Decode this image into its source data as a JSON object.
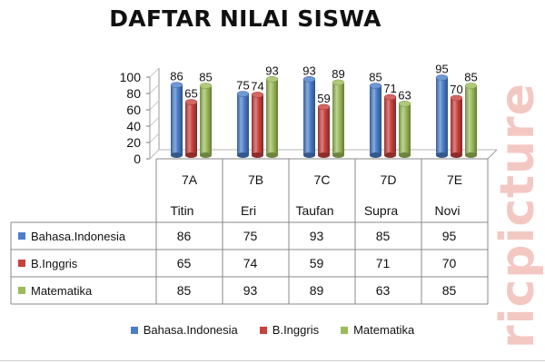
{
  "page": {
    "title": "DAFTAR NILAI SISWA",
    "watermark": "ricpicture"
  },
  "colors": {
    "series": [
      "#4a7ec9",
      "#c9403d",
      "#9bbb59"
    ],
    "background": "#ffffff",
    "grid": "#b8b8b8"
  },
  "chart_data": {
    "type": "bar",
    "title": "DAFTAR NILAI SISWA",
    "categories": [
      {
        "class": "7A",
        "name": "Titin"
      },
      {
        "class": "7B",
        "name": "Eri"
      },
      {
        "class": "7C",
        "name": "Taufan"
      },
      {
        "class": "7D",
        "name": "Supra"
      },
      {
        "class": "7E",
        "name": "Novi"
      }
    ],
    "series": [
      {
        "name": "Bahasa.Indonesia",
        "values": [
          86,
          75,
          93,
          85,
          95
        ]
      },
      {
        "name": "B.Inggris",
        "values": [
          65,
          74,
          59,
          71,
          70
        ]
      },
      {
        "name": "Matematika",
        "values": [
          85,
          93,
          89,
          63,
          85
        ]
      }
    ],
    "ylim": [
      0,
      100
    ],
    "yticks": [
      0,
      20,
      40,
      60,
      80,
      100
    ],
    "grid": false,
    "legend_position": "bottom",
    "data_table": true,
    "bar_style": "3d-cylinder"
  }
}
